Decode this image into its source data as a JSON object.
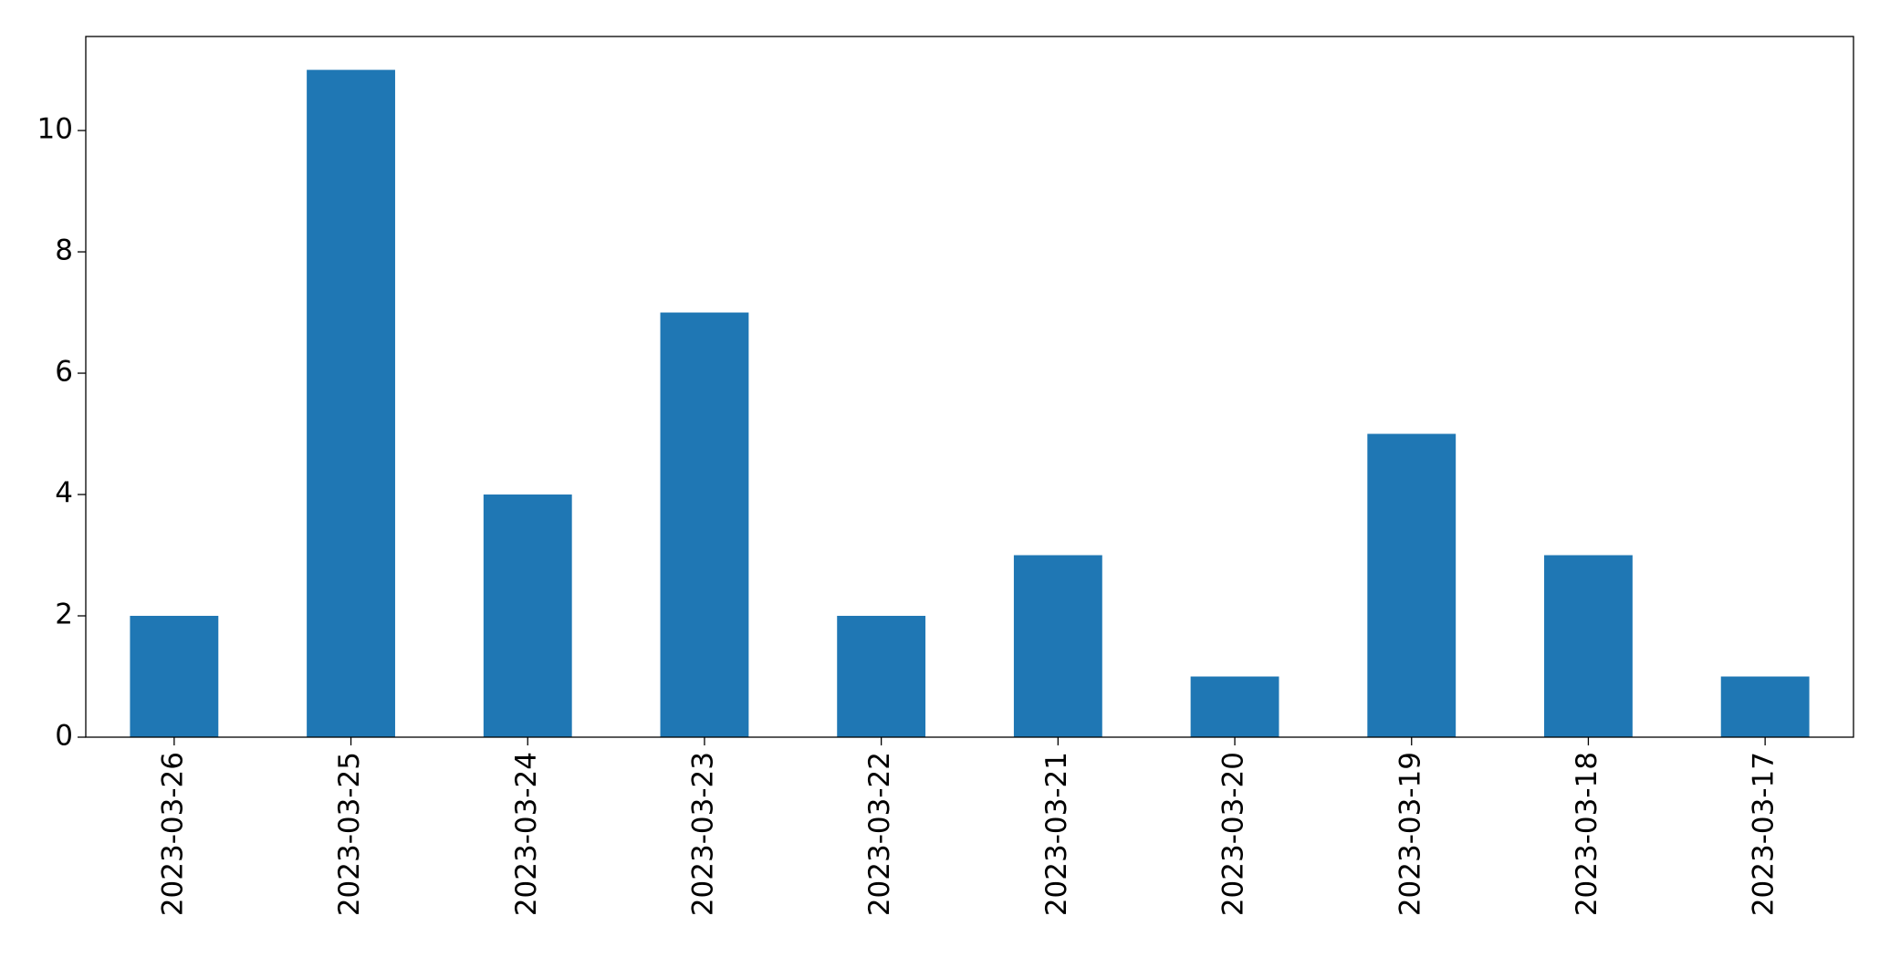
{
  "chart_data": {
    "type": "bar",
    "categories": [
      "2023-03-26",
      "2023-03-25",
      "2023-03-24",
      "2023-03-23",
      "2023-03-22",
      "2023-03-21",
      "2023-03-20",
      "2023-03-19",
      "2023-03-18",
      "2023-03-17"
    ],
    "values": [
      2,
      11,
      4,
      7,
      2,
      3,
      1,
      5,
      3,
      1
    ],
    "color": "#1f77b4",
    "ylim": [
      0,
      11.55
    ],
    "yticks": [
      0,
      2,
      4,
      6,
      8,
      10
    ],
    "grid": false
  }
}
